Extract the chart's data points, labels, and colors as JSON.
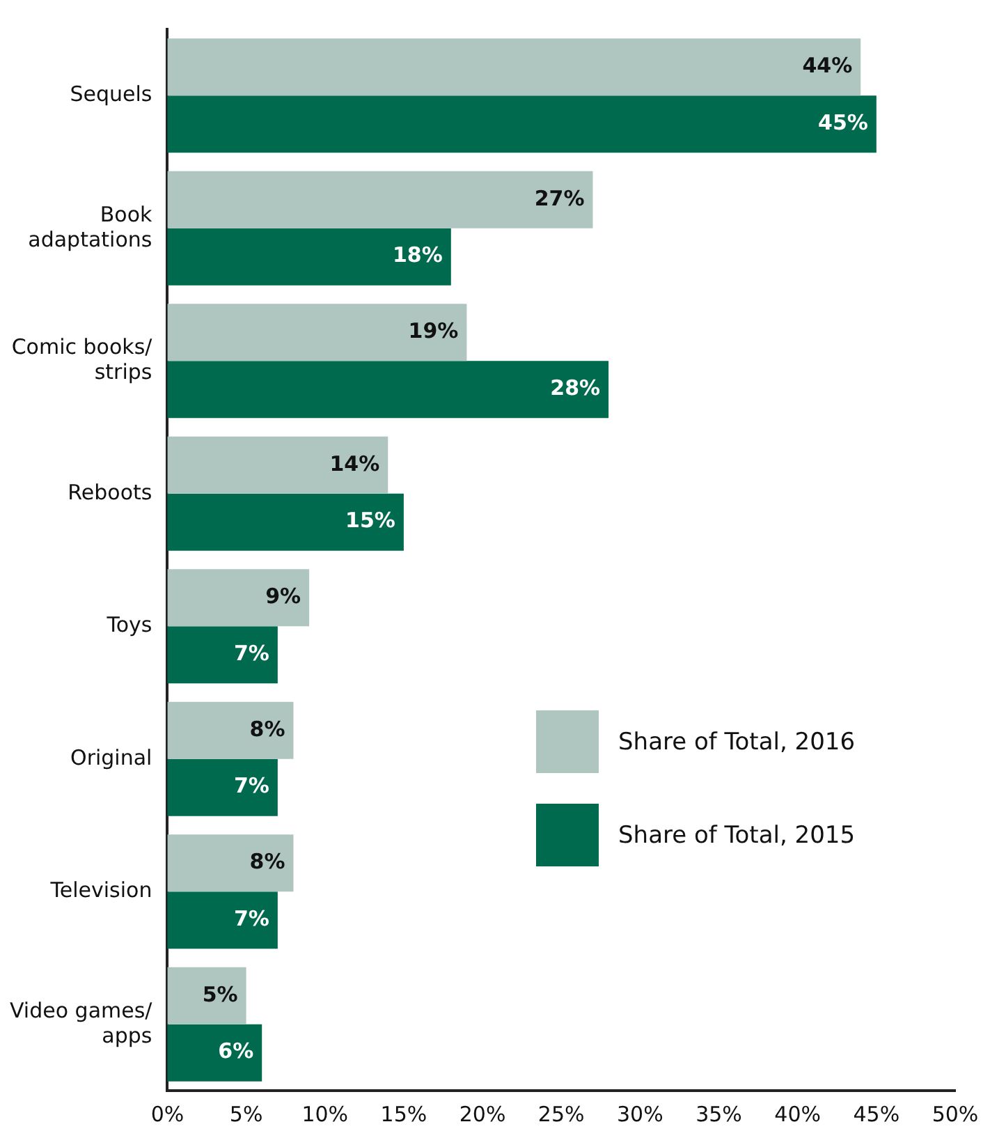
{
  "chart_data": {
    "type": "bar",
    "orientation": "horizontal",
    "categories": [
      "Sequels",
      "Book adaptations",
      "Comic books/ strips",
      "Reboots",
      "Toys",
      "Original",
      "Television",
      "Video games/ apps"
    ],
    "series": [
      {
        "name": "Share of Total, 2016",
        "color": "#aec6bf",
        "values": [
          44,
          27,
          19,
          14,
          9,
          8,
          8,
          5
        ],
        "value_labels": [
          "44%",
          "27%",
          "19%",
          "14%",
          "9%",
          "8%",
          "8%",
          "5%"
        ]
      },
      {
        "name": "Share of Total, 2015",
        "color": "#006a4e",
        "values": [
          45,
          18,
          28,
          15,
          7,
          7,
          7,
          6
        ],
        "value_labels": [
          "45%",
          "18%",
          "28%",
          "15%",
          "7%",
          "7%",
          "7%",
          "6%"
        ]
      }
    ],
    "xlim": [
      0,
      50
    ],
    "xticks": [
      {
        "value": 0,
        "label": "0%"
      },
      {
        "value": 5,
        "label": "5%"
      },
      {
        "value": 10,
        "label": "10%"
      },
      {
        "value": 15,
        "label": "15%"
      },
      {
        "value": 20,
        "label": "20%"
      },
      {
        "value": 25,
        "label": "25%"
      },
      {
        "value": 30,
        "label": "30%"
      },
      {
        "value": 35,
        "label": "35%"
      },
      {
        "value": 40,
        "label": "40%"
      },
      {
        "value": 45,
        "label": "45%"
      },
      {
        "value": 50,
        "label": "50%"
      }
    ],
    "grid": false,
    "legend": "right"
  }
}
